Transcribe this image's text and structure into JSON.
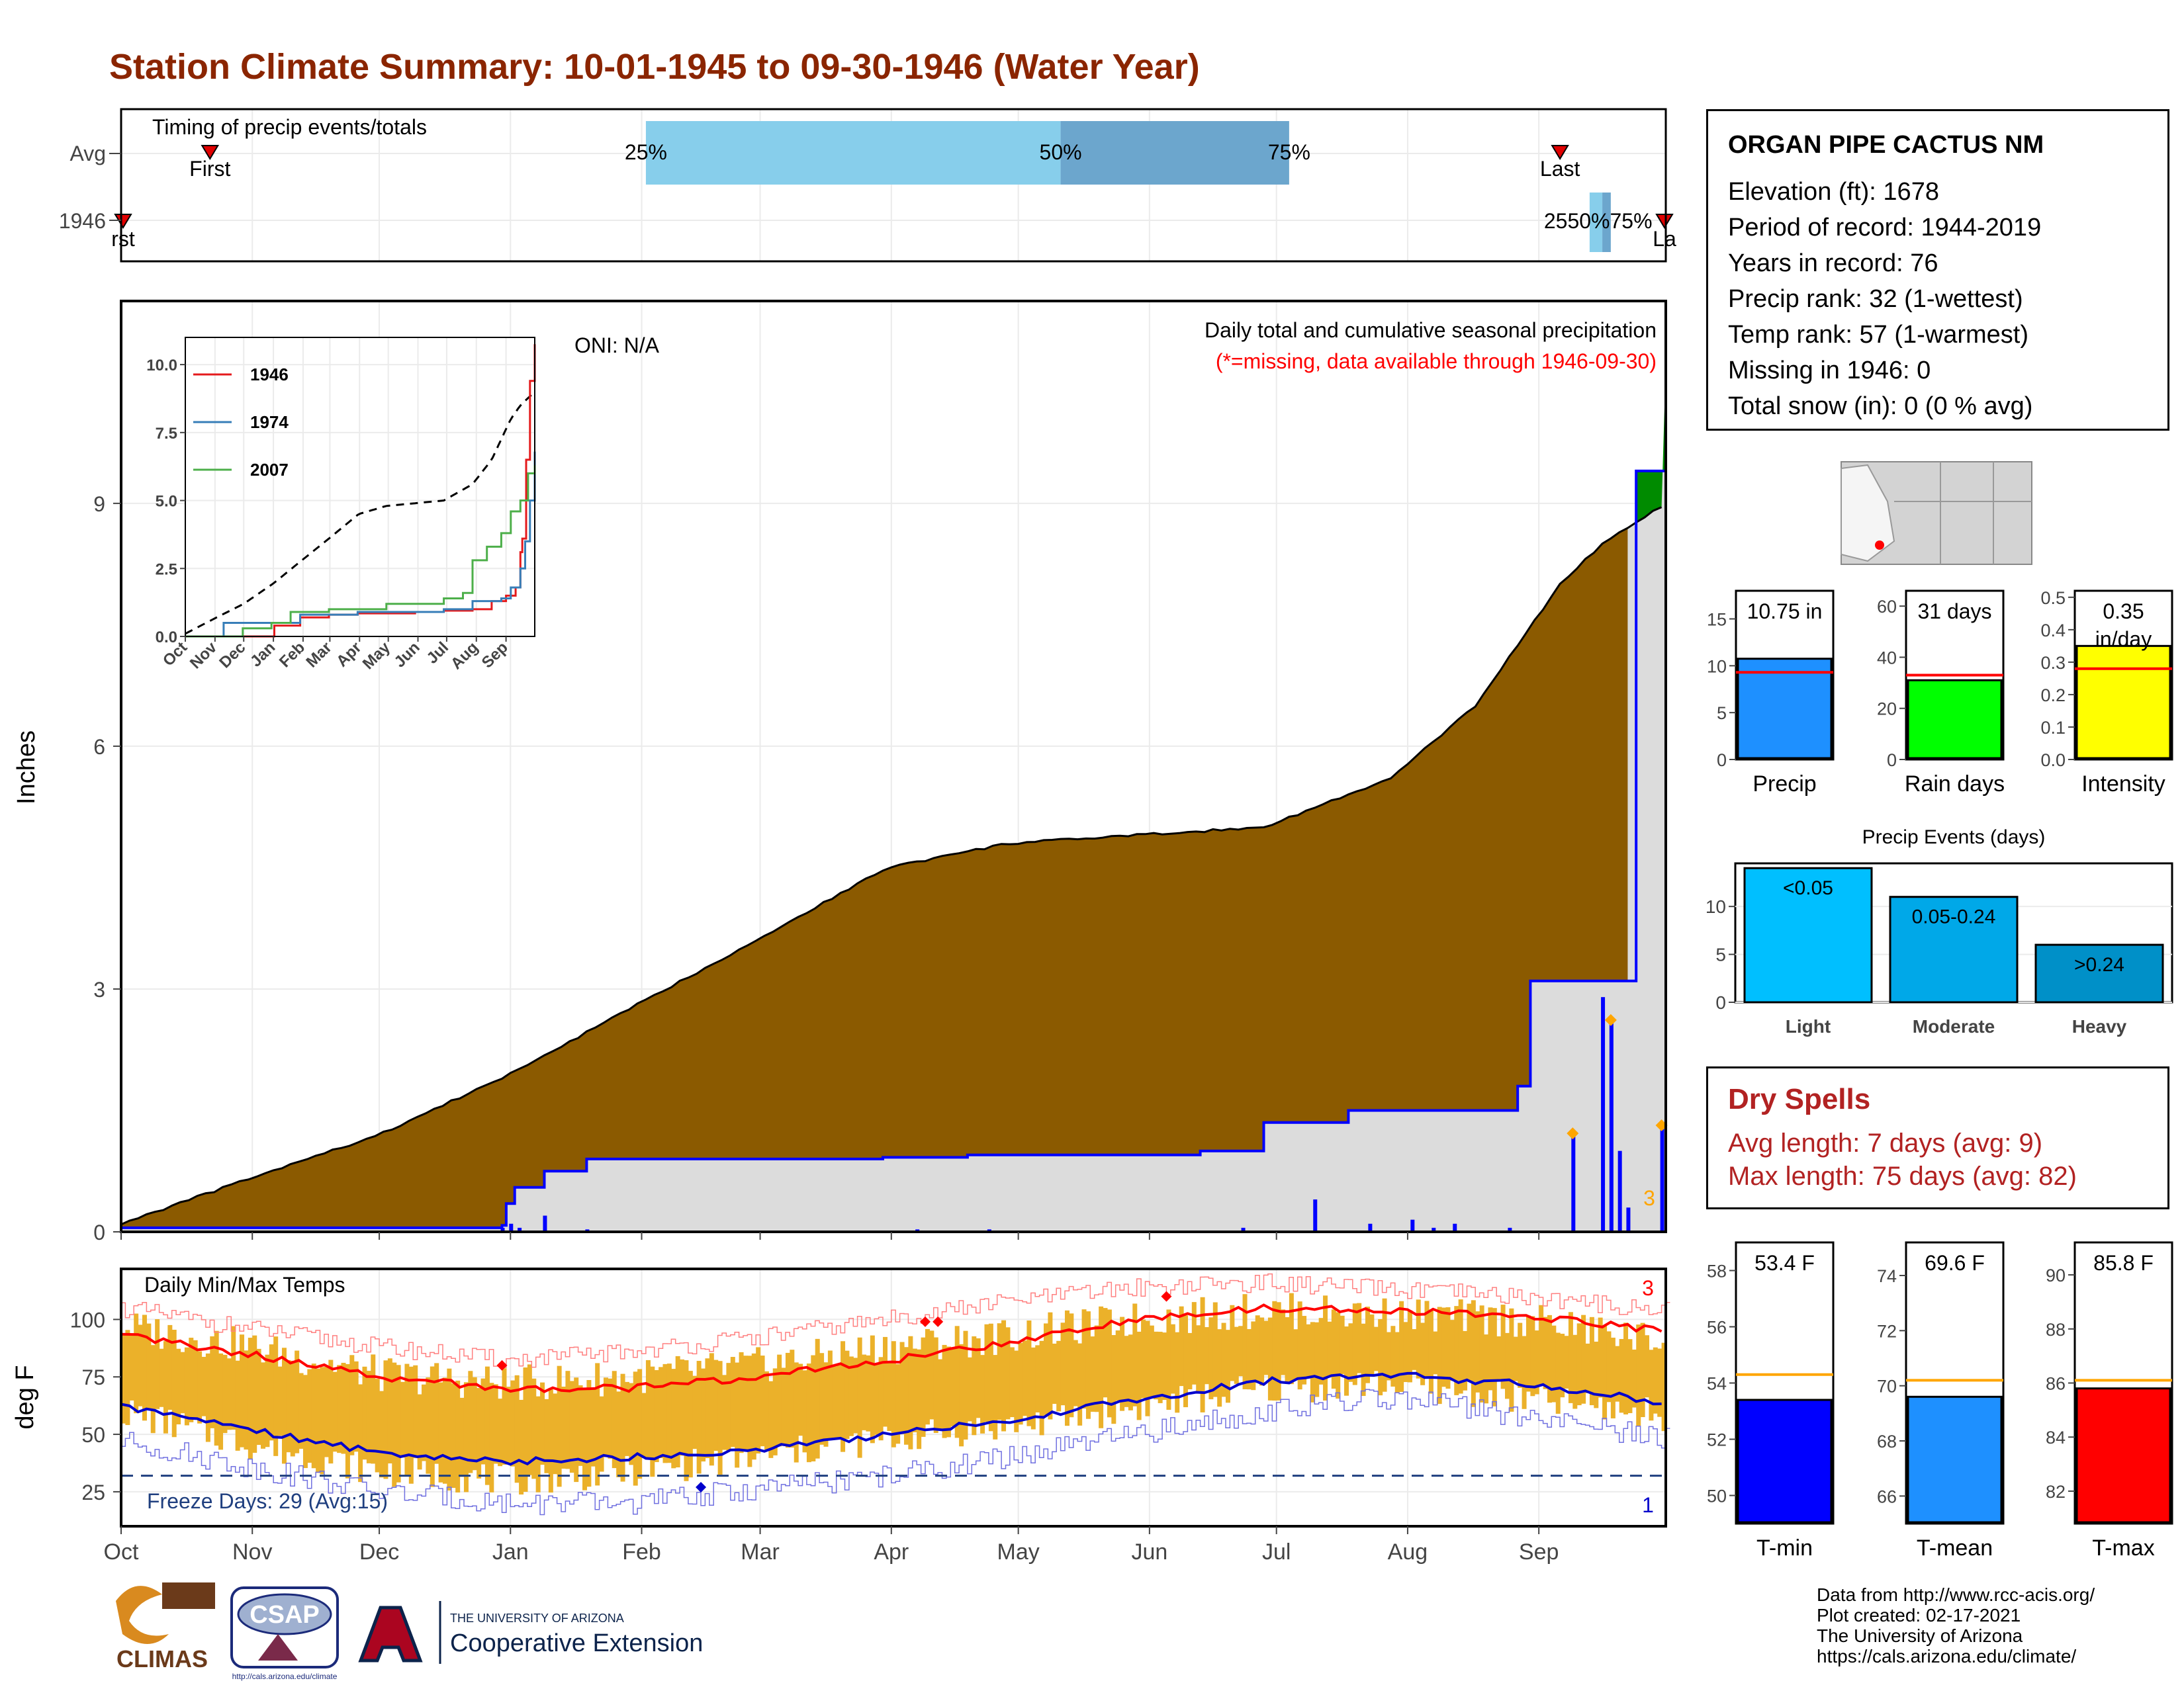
{
  "page": {
    "title": "Station Climate Summary: 10-01-1945 to 09-30-1946 (Water Year)"
  },
  "station": {
    "name": "ORGAN PIPE CACTUS NM",
    "lines": [
      "Elevation (ft): 1678",
      "Period of record: 1944-2019",
      "Years in record: 76",
      "Precip rank: 32 (1-wettest)",
      "Temp rank: 57 (1-warmest)",
      "Missing in 1946: 0",
      "Total snow (in): 0 (0 % avg)"
    ]
  },
  "dry_spells": {
    "title": "Dry Spells",
    "avg": "Avg length: 7 days (avg: 9)",
    "max": "Max length: 75 days (avg: 82)"
  },
  "credits": [
    "Data from http://www.rcc-acis.org/",
    "Plot created: 02-17-2021",
    "The University of Arizona",
    "https://cals.arizona.edu/climate/"
  ],
  "logos": {
    "climas": "CLIMAS",
    "csap": "CSAP",
    "csap_url": "http://cals.arizona.edu/climate",
    "ua_small": "THE UNIVERSITY OF ARIZONA",
    "ua_big": "Cooperative Extension"
  },
  "colors": {
    "title": "#8B2500",
    "brown": "#8B5A00",
    "green": "#008B00",
    "precip_blue": "#0000FF",
    "gray_fill": "#DCDCDC",
    "temp_bar": "#EBB12A",
    "max_line": "#FF0000",
    "min_line": "#0000CC",
    "light_blue": "#87CEEB",
    "mid_blue": "#6CA6CD"
  },
  "chart_data": [
    {
      "id": "timing",
      "type": "timeline",
      "title": "Timing of precip events/totals",
      "rows": [
        "Avg",
        "1946"
      ],
      "avg": {
        "first": "Nov 10",
        "q25": "Feb",
        "q50": "May",
        "q75": "Jul",
        "last": "Sep 6"
      },
      "y1946": {
        "first": "Oct 1",
        "q25": "Sep",
        "q50": "Sep",
        "q75": "Sep",
        "last": "Sep 30"
      },
      "labels": {
        "first": "First",
        "last": "Last",
        "q25": "25%",
        "q50": "50%",
        "q75": "75%"
      },
      "row_1946_overlap": "2550%75%",
      "row_1946_first": "rst",
      "row_1946_last": "La"
    },
    {
      "id": "precip",
      "type": "area",
      "title": "Daily total and cumulative seasonal precipitation",
      "subtitle": "(*=missing, data available through 1946-09-30)",
      "oni": "ONI: N/A",
      "ylabel": "Inches",
      "ylim": [
        0,
        11.5
      ],
      "yticks": [
        0,
        3,
        6,
        9
      ],
      "months": [
        "Oct",
        "Nov",
        "Dec",
        "Jan",
        "Feb",
        "Mar",
        "Apr",
        "May",
        "Jun",
        "Jul",
        "Aug",
        "Sep"
      ],
      "month_start_days": [
        0,
        31,
        61,
        92,
        123,
        151,
        182,
        212,
        243,
        273,
        304,
        335
      ],
      "avg_cumulative": {
        "days": [
          0,
          30,
          61,
          92,
          120,
          150,
          181,
          210,
          240,
          270,
          300,
          320,
          340,
          350,
          365
        ],
        "values": [
          0.1,
          0.65,
          1.2,
          1.95,
          2.75,
          3.6,
          4.5,
          4.8,
          4.9,
          5.0,
          5.6,
          6.5,
          8.0,
          8.5,
          9.0
        ]
      },
      "cumulative_1946": {
        "days": [
          0,
          60,
          90,
          91,
          93,
          100,
          110,
          180,
          200,
          205,
          255,
          270,
          290,
          330,
          333,
          350,
          358,
          365
        ],
        "values": [
          0.05,
          0.05,
          0.08,
          0.35,
          0.55,
          0.75,
          0.9,
          0.92,
          0.95,
          0.95,
          1.0,
          1.35,
          1.5,
          1.8,
          3.1,
          3.1,
          9.4,
          10.75
        ]
      },
      "daily_1946": {
        "days": [
          90,
          92,
          94,
          100,
          110,
          188,
          205,
          265,
          282,
          295,
          305,
          310,
          315,
          328,
          343,
          350,
          352,
          354,
          356,
          364
        ],
        "values": [
          0.05,
          0.1,
          0.05,
          0.2,
          0.03,
          0.03,
          0.03,
          0.05,
          0.4,
          0.1,
          0.15,
          0.05,
          0.1,
          0.05,
          1.2,
          2.9,
          2.6,
          1.0,
          0.3,
          1.3
        ]
      },
      "high_marker_days": [
        343,
        352,
        364
      ],
      "count_label": "3"
    },
    {
      "id": "inset",
      "type": "line",
      "ylim": [
        0,
        11
      ],
      "yticks": [
        "0.0",
        "2.5",
        "5.0",
        "7.5",
        "10.0"
      ],
      "months": [
        "Oct",
        "Nov",
        "Dec",
        "Jan",
        "Feb",
        "Mar",
        "Apr",
        "May",
        "Jun",
        "Jul",
        "Aug",
        "Sep"
      ],
      "series": [
        {
          "name": "1946",
          "color": "#E41A1C",
          "days": [
            0,
            62,
            93,
            120,
            150,
            180,
            240,
            270,
            300,
            320,
            335,
            345,
            350,
            352,
            356,
            360,
            365
          ],
          "values": [
            0,
            0,
            0.4,
            0.7,
            0.8,
            0.85,
            0.9,
            0.95,
            1.0,
            1.3,
            1.5,
            1.8,
            3.1,
            3.6,
            6.5,
            9.4,
            10.75
          ]
        },
        {
          "name": "1974",
          "color": "#377EB8",
          "days": [
            0,
            30,
            40,
            90,
            120,
            180,
            270,
            300,
            330,
            340,
            350,
            355,
            360,
            365
          ],
          "values": [
            0,
            0,
            0.5,
            0.5,
            0.8,
            0.9,
            1.0,
            1.3,
            1.4,
            1.8,
            2.5,
            3.5,
            5.0,
            6.8
          ]
        },
        {
          "name": "2007",
          "color": "#4DAF4A",
          "days": [
            0,
            45,
            60,
            90,
            110,
            150,
            210,
            270,
            290,
            300,
            315,
            330,
            340,
            350,
            358,
            365
          ],
          "values": [
            0,
            0,
            0.3,
            0.5,
            0.9,
            1.0,
            1.2,
            1.4,
            1.6,
            2.8,
            3.3,
            3.8,
            4.6,
            5.0,
            6.0,
            6.3
          ]
        }
      ],
      "avg_days": [
        0,
        30,
        61,
        92,
        120,
        150,
        181,
        210,
        240,
        270,
        300,
        320,
        340,
        350,
        365
      ],
      "avg_values": [
        0.1,
        0.65,
        1.2,
        1.95,
        2.75,
        3.6,
        4.5,
        4.8,
        4.9,
        5.0,
        5.6,
        6.5,
        8.0,
        8.5,
        9.0
      ]
    },
    {
      "id": "temps",
      "type": "bar",
      "title": "Daily Min/Max Temps",
      "ylabel": "deg F",
      "ylim": [
        10,
        122
      ],
      "yticks": [
        25,
        50,
        75,
        100
      ],
      "freeze_label": "Freeze Days: 29 (Avg:15)",
      "freeze_line": 32,
      "max_count": "3",
      "min_count": "1",
      "avg_max": {
        "days": [
          0,
          30,
          61,
          92,
          120,
          150,
          181,
          210,
          240,
          270,
          300,
          330,
          365
        ],
        "values": [
          93,
          85,
          75,
          70,
          70,
          75,
          82,
          90,
          100,
          105,
          104,
          102,
          95
        ]
      },
      "avg_min": {
        "days": [
          0,
          30,
          61,
          92,
          120,
          150,
          181,
          210,
          240,
          270,
          300,
          330,
          365
        ],
        "values": [
          62,
          52,
          42,
          38,
          40,
          43,
          50,
          56,
          65,
          73,
          76,
          72,
          64
        ]
      },
      "rec_max": {
        "days": [
          0,
          30,
          61,
          92,
          120,
          150,
          181,
          210,
          240,
          270,
          300,
          330,
          365
        ],
        "values": [
          105,
          96,
          88,
          82,
          86,
          92,
          100,
          108,
          114,
          116,
          113,
          110,
          104
        ]
      },
      "rec_min": {
        "days": [
          0,
          30,
          61,
          92,
          120,
          150,
          181,
          210,
          240,
          270,
          300,
          330,
          365
        ],
        "values": [
          47,
          36,
          25,
          20,
          20,
          26,
          32,
          40,
          50,
          60,
          66,
          58,
          48
        ]
      },
      "max_1946": {
        "days": [
          0,
          30,
          61,
          92,
          120,
          150,
          181,
          210,
          240,
          270,
          300,
          330,
          365
        ],
        "values": [
          97,
          88,
          76,
          72,
          75,
          80,
          88,
          93,
          100,
          104,
          102,
          100,
          90
        ]
      },
      "min_1946": {
        "days": [
          0,
          30,
          61,
          92,
          120,
          150,
          181,
          210,
          240,
          270,
          300,
          330,
          365
        ],
        "values": [
          60,
          46,
          34,
          30,
          34,
          40,
          48,
          54,
          62,
          70,
          72,
          66,
          58
        ]
      },
      "red_markers": [
        {
          "day": 90,
          "value": 80
        },
        {
          "day": 190,
          "value": 99
        },
        {
          "day": 247,
          "value": 110
        },
        {
          "day": 193,
          "value": 99
        }
      ],
      "blue_markers": [
        {
          "day": 137,
          "value": 27
        }
      ]
    },
    {
      "id": "precip_bar",
      "type": "bar",
      "label": "10.75 in",
      "xlabel": "Precip",
      "value": 10.75,
      "avg": 9.3,
      "ylim": [
        0,
        18
      ],
      "yticks": [
        0,
        5,
        10,
        15
      ],
      "color": "#1E90FF"
    },
    {
      "id": "raindays_bar",
      "type": "bar",
      "label": "31 days",
      "xlabel": "Rain days",
      "value": 31,
      "avg": 33,
      "ylim": [
        0,
        66
      ],
      "yticks": [
        0,
        20,
        40,
        60
      ],
      "color": "#00FF00"
    },
    {
      "id": "intensity_bar",
      "type": "bar",
      "label": "0.35",
      "label2": "in/day",
      "xlabel": "Intensity",
      "value": 0.35,
      "avg": 0.28,
      "ylim": [
        0,
        0.52
      ],
      "yticks": [
        "0.0",
        "0.1",
        "0.2",
        "0.3",
        "0.4",
        "0.5"
      ],
      "color": "#FFFF00"
    },
    {
      "id": "events",
      "type": "bar",
      "title": "Precip Events (days)",
      "categories": [
        "Light",
        "Moderate",
        "Heavy"
      ],
      "labels": [
        "<0.05",
        "0.05-0.24",
        ">0.24"
      ],
      "values": [
        14,
        11,
        6
      ],
      "ylim": [
        0,
        14.5
      ],
      "yticks": [
        0,
        5,
        10
      ],
      "colors": [
        "#00BFFF",
        "#00A8E8",
        "#0090C8"
      ]
    },
    {
      "id": "tmin_bar",
      "type": "bar",
      "label": "53.4 F",
      "xlabel": "T-min",
      "value": 53.4,
      "avg": 54.3,
      "ylim": [
        49,
        59
      ],
      "yticks": [
        50,
        52,
        54,
        56,
        58
      ],
      "color": "#0000FF"
    },
    {
      "id": "tmean_bar",
      "type": "bar",
      "label": "69.6 F",
      "xlabel": "T-mean",
      "value": 69.6,
      "avg": 70.2,
      "ylim": [
        65,
        75.2
      ],
      "yticks": [
        66,
        68,
        70,
        72,
        74
      ],
      "color": "#1E90FF"
    },
    {
      "id": "tmax_bar",
      "type": "bar",
      "label": "85.8 F",
      "xlabel": "T-max",
      "value": 85.8,
      "avg": 86.1,
      "ylim": [
        80.8,
        91.2
      ],
      "yticks": [
        82,
        84,
        86,
        88,
        90
      ],
      "color": "#FF0000"
    }
  ]
}
